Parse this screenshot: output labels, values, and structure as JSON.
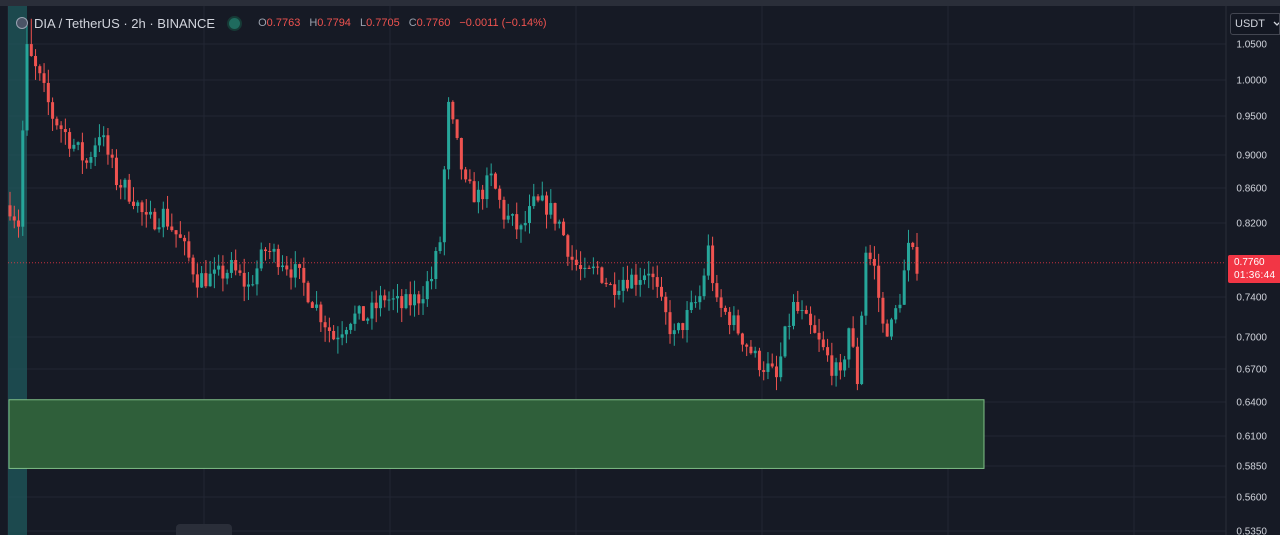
{
  "header": {
    "symbol": "DIA / TetherUS · 2h · BINANCE",
    "ohlc": {
      "o_label": "O",
      "o": "0.7763",
      "h_label": "H",
      "h": "0.7794",
      "l_label": "L",
      "l": "0.7705",
      "c_label": "C",
      "c": "0.7760",
      "change": "−0.0011 (−0.14%)"
    }
  },
  "currency_button": {
    "label": "USDT",
    "icon": "chevron-down-icon"
  },
  "price_label": {
    "price": "0.7760",
    "countdown": "01:36:44"
  },
  "colors": {
    "background": "#161a25",
    "up": "#26a69a",
    "down": "#ef5350",
    "last_price": "#f23645",
    "zone_fill": "#2f5f3a",
    "zone_border": "#7fbf86"
  },
  "chart_data": {
    "type": "candlestick",
    "title": "DIA / TetherUS · 2h · BINANCE",
    "ylabel": "",
    "y_tick_labels": [
      "1.0500",
      "1.0000",
      "0.9500",
      "0.9000",
      "0.8600",
      "0.8200",
      "0.7400",
      "0.7000",
      "0.6700",
      "0.6400",
      "0.6100",
      "0.5850",
      "0.5600",
      "0.5350"
    ],
    "ylim": [
      0.535,
      1.05
    ],
    "scale": "log",
    "grid": true,
    "last_price": 0.776,
    "zone": {
      "label": "",
      "y_low": 0.583,
      "y_high": 0.642,
      "x_start_fraction": 0.0,
      "x_end_fraction": 0.8
    },
    "keypoints": [
      [
        0,
        0.84
      ],
      [
        2,
        0.82
      ],
      [
        4,
        1.04
      ],
      [
        7,
        1.0
      ],
      [
        10,
        0.95
      ],
      [
        14,
        0.92
      ],
      [
        18,
        0.89
      ],
      [
        21,
        0.93
      ],
      [
        25,
        0.87
      ],
      [
        29,
        0.85
      ],
      [
        32,
        0.82
      ],
      [
        36,
        0.83
      ],
      [
        40,
        0.8
      ],
      [
        44,
        0.76
      ],
      [
        48,
        0.76
      ],
      [
        52,
        0.77
      ],
      [
        56,
        0.75
      ],
      [
        60,
        0.79
      ],
      [
        64,
        0.78
      ],
      [
        68,
        0.76
      ],
      [
        72,
        0.73
      ],
      [
        76,
        0.7
      ],
      [
        80,
        0.72
      ],
      [
        84,
        0.72
      ],
      [
        88,
        0.74
      ],
      [
        92,
        0.73
      ],
      [
        96,
        0.74
      ],
      [
        99,
        0.76
      ],
      [
        101,
        0.8
      ],
      [
        103,
        0.96
      ],
      [
        105,
        0.91
      ],
      [
        107,
        0.86
      ],
      [
        110,
        0.85
      ],
      [
        113,
        0.87
      ],
      [
        116,
        0.83
      ],
      [
        120,
        0.81
      ],
      [
        123,
        0.84
      ],
      [
        126,
        0.84
      ],
      [
        129,
        0.82
      ],
      [
        132,
        0.78
      ],
      [
        135,
        0.76
      ],
      [
        138,
        0.77
      ],
      [
        141,
        0.75
      ],
      [
        144,
        0.76
      ],
      [
        147,
        0.76
      ],
      [
        150,
        0.77
      ],
      [
        153,
        0.73
      ],
      [
        156,
        0.7
      ],
      [
        159,
        0.72
      ],
      [
        162,
        0.74
      ],
      [
        164,
        0.79
      ],
      [
        166,
        0.73
      ],
      [
        169,
        0.72
      ],
      [
        172,
        0.7
      ],
      [
        175,
        0.68
      ],
      [
        178,
        0.67
      ],
      [
        180,
        0.66
      ],
      [
        182,
        0.7
      ],
      [
        184,
        0.73
      ],
      [
        186,
        0.72
      ],
      [
        189,
        0.7
      ],
      [
        192,
        0.68
      ],
      [
        195,
        0.66
      ],
      [
        197,
        0.71
      ],
      [
        199,
        0.66
      ],
      [
        201,
        0.79
      ],
      [
        203,
        0.77
      ],
      [
        205,
        0.71
      ],
      [
        207,
        0.71
      ],
      [
        209,
        0.74
      ],
      [
        211,
        0.79
      ],
      [
        213,
        0.775
      ]
    ]
  }
}
